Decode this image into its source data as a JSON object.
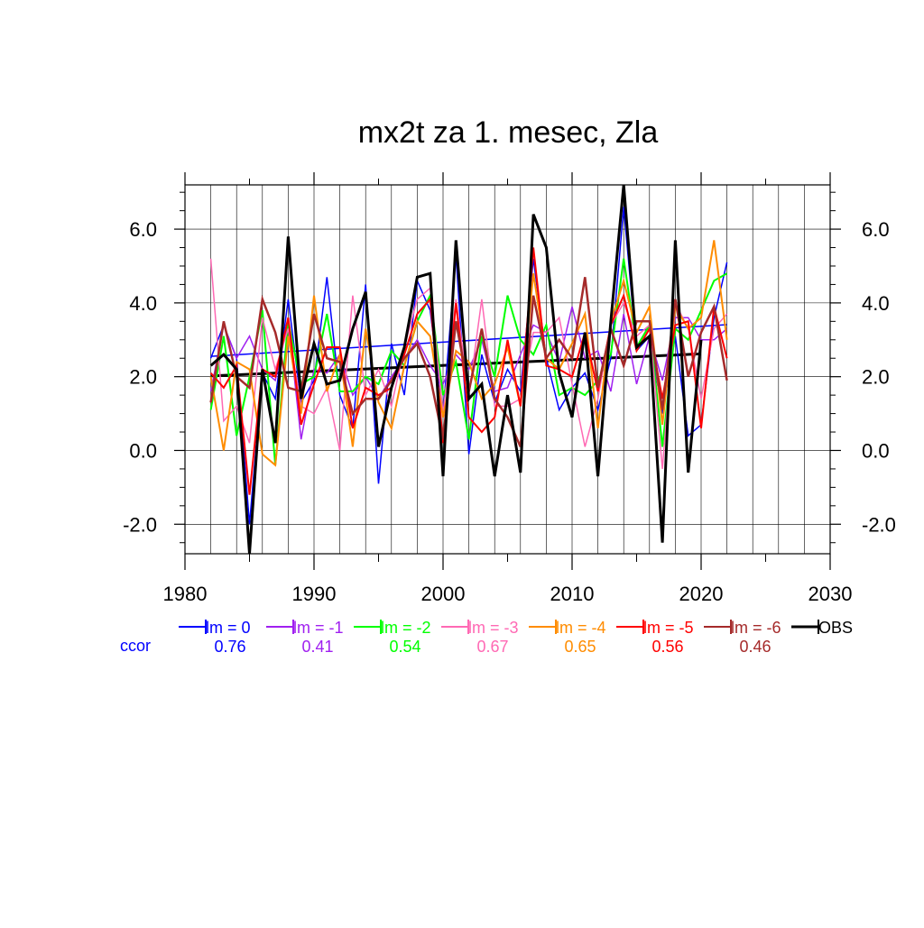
{
  "chart_data": {
    "type": "line",
    "title": "mx2t za 1. mesec, Zla",
    "xlabel": "",
    "ylabel": "",
    "xlim": [
      1980,
      2030
    ],
    "ylim": [
      -2.8,
      7.2
    ],
    "x_ticks": [
      1980,
      1990,
      2000,
      2010,
      2020,
      2030
    ],
    "x_tick_labels": [
      "1980",
      "1990",
      "2000",
      "2010",
      "2020",
      "2030"
    ],
    "y_ticks": [
      -2.0,
      0.0,
      2.0,
      4.0,
      6.0
    ],
    "y_tick_labels": [
      "-2.0",
      "0.0",
      "2.0",
      "4.0",
      "6.0"
    ],
    "grid": true,
    "legend_position": "below",
    "ccor_label": "ccor",
    "ccor_color": "#0000ff",
    "series": [
      {
        "name": "lm = 0",
        "ccor": "0.76",
        "color": "#0000ff",
        "width": 1.5,
        "x": [
          1982,
          1983,
          1984,
          1985,
          1986,
          1987,
          1988,
          1989,
          1990,
          1991,
          1992,
          1993,
          1994,
          1995,
          1996,
          1997,
          1998,
          1999,
          2000,
          2001,
          2002,
          2003,
          2004,
          2005,
          2006,
          2007,
          2008,
          2009,
          2010,
          2011,
          2012,
          2013,
          2014,
          2015,
          2016,
          2017,
          2018,
          2019,
          2020,
          2021,
          2022
        ],
        "y": [
          2.5,
          3.4,
          2.5,
          -2.0,
          2.1,
          1.4,
          4.1,
          1.3,
          1.9,
          4.7,
          1.5,
          0.6,
          4.5,
          -0.9,
          2.9,
          1.5,
          4.6,
          3.8,
          1.0,
          5.3,
          -0.1,
          2.6,
          1.3,
          2.2,
          1.6,
          5.2,
          2.5,
          1.1,
          1.7,
          2.1,
          1.1,
          2.5,
          6.6,
          2.7,
          3.1,
          1.0,
          3.1,
          0.4,
          0.7,
          3.6,
          5.1
        ],
        "trend": [
          [
            1982,
            2.55
          ],
          [
            2022,
            3.41
          ]
        ]
      },
      {
        "name": "lm = -1",
        "ccor": "0.41",
        "color": "#a020f0",
        "width": 1.5,
        "x": [
          1982,
          1983,
          1984,
          1985,
          1986,
          1987,
          1988,
          1989,
          1990,
          1991,
          1992,
          1993,
          1994,
          1995,
          1996,
          1997,
          1998,
          1999,
          2000,
          2001,
          2002,
          2003,
          2004,
          2005,
          2006,
          2007,
          2008,
          2009,
          2010,
          2011,
          2012,
          2013,
          2014,
          2015,
          2016,
          2017,
          2018,
          2019,
          2020,
          2021,
          2022
        ],
        "y": [
          1.6,
          3.4,
          2.5,
          3.1,
          2.2,
          1.9,
          3.5,
          0.3,
          2.2,
          2.1,
          2.6,
          1.5,
          2.0,
          1.4,
          2.0,
          2.5,
          3.0,
          2.3,
          1.8,
          2.6,
          2.2,
          3.0,
          1.6,
          1.7,
          2.6,
          3.4,
          3.2,
          2.4,
          3.9,
          2.5,
          2.7,
          1.6,
          3.7,
          1.8,
          3.1,
          1.9,
          3.6,
          3.6,
          3.0,
          3.0,
          3.3
        ]
      },
      {
        "name": "lm = -2",
        "ccor": "0.54",
        "color": "#00ff00",
        "width": 2,
        "x": [
          1982,
          1983,
          1984,
          1985,
          1986,
          1987,
          1988,
          1989,
          1990,
          1991,
          1992,
          1993,
          1994,
          1995,
          1996,
          1997,
          1998,
          1999,
          2000,
          2001,
          2002,
          2003,
          2004,
          2005,
          2006,
          2007,
          2008,
          2009,
          2010,
          2011,
          2012,
          2013,
          2014,
          2015,
          2016,
          2017,
          2018,
          2019,
          2020,
          2021,
          2022
        ],
        "y": [
          1.1,
          3.1,
          0.4,
          2.0,
          3.8,
          -0.4,
          3.5,
          1.8,
          2.0,
          3.7,
          1.6,
          1.6,
          2.0,
          1.8,
          2.7,
          2.3,
          3.5,
          4.2,
          1.5,
          2.4,
          0.3,
          3.1,
          2.0,
          4.2,
          3.0,
          2.6,
          3.4,
          1.5,
          1.7,
          1.5,
          1.9,
          2.6,
          5.2,
          2.8,
          3.4,
          0.1,
          3.3,
          3.0,
          3.8,
          4.6,
          4.8
        ]
      },
      {
        "name": "lm = -3",
        "ccor": "0.67",
        "color": "#ff69b4",
        "width": 1.5,
        "x": [
          1982,
          1983,
          1984,
          1985,
          1986,
          1987,
          1988,
          1989,
          1990,
          1991,
          1992,
          1993,
          1994,
          1995,
          1996,
          1997,
          1998,
          1999,
          2000,
          2001,
          2002,
          2003,
          2004,
          2005,
          2006,
          2007,
          2008,
          2009,
          2010,
          2011,
          2012,
          2013,
          2014,
          2015,
          2016,
          2017,
          2018,
          2019,
          2020,
          2021,
          2022
        ],
        "y": [
          5.2,
          0.8,
          1.2,
          0.2,
          3.6,
          2.2,
          3.3,
          1.2,
          1.0,
          1.7,
          0.0,
          4.2,
          1.5,
          2.2,
          1.2,
          2.8,
          4.1,
          4.4,
          1.0,
          4.1,
          1.5,
          4.1,
          1.2,
          1.2,
          1.4,
          3.2,
          3.2,
          3.6,
          1.8,
          0.1,
          1.4,
          3.4,
          4.0,
          3.1,
          3.4,
          -0.5,
          4.0,
          3.3,
          1.4,
          3.3,
          3.7
        ]
      },
      {
        "name": "lm = -4",
        "ccor": "0.65",
        "color": "#ff8c00",
        "width": 2,
        "x": [
          1982,
          1983,
          1984,
          1985,
          1986,
          1987,
          1988,
          1989,
          1990,
          1991,
          1992,
          1993,
          1994,
          1995,
          1996,
          1997,
          1998,
          1999,
          2000,
          2001,
          2002,
          2003,
          2004,
          2005,
          2006,
          2007,
          2008,
          2009,
          2010,
          2011,
          2012,
          2013,
          2014,
          2015,
          2016,
          2017,
          2018,
          2019,
          2020,
          2021,
          2022
        ],
        "y": [
          2.0,
          0.0,
          2.4,
          2.2,
          -0.1,
          -0.4,
          3.1,
          1.0,
          4.2,
          1.6,
          2.6,
          0.1,
          3.3,
          1.3,
          0.6,
          2.3,
          3.5,
          3.1,
          0.9,
          2.7,
          2.4,
          1.4,
          1.8,
          2.8,
          1.2,
          4.8,
          2.5,
          2.2,
          2.9,
          3.7,
          0.6,
          3.5,
          4.6,
          3.2,
          3.9,
          0.7,
          3.9,
          3.3,
          3.6,
          5.7,
          3.0
        ]
      },
      {
        "name": "lm = -5",
        "ccor": "0.56",
        "color": "#ff0000",
        "width": 2,
        "x": [
          1982,
          1983,
          1984,
          1985,
          1986,
          1987,
          1988,
          1989,
          1990,
          1991,
          1992,
          1993,
          1994,
          1995,
          1996,
          1997,
          1998,
          1999,
          2000,
          2001,
          2002,
          2003,
          2004,
          2005,
          2006,
          2007,
          2008,
          2009,
          2010,
          2011,
          2012,
          2013,
          2014,
          2015,
          2016,
          2017,
          2018,
          2019,
          2020,
          2021,
          2022
        ],
        "y": [
          2.1,
          1.7,
          2.3,
          -1.2,
          2.2,
          2.0,
          3.6,
          0.7,
          1.8,
          2.8,
          2.8,
          0.6,
          1.7,
          1.5,
          1.7,
          2.6,
          3.7,
          4.1,
          0.2,
          4.0,
          0.9,
          0.5,
          0.9,
          3.0,
          1.2,
          5.5,
          2.3,
          2.2,
          2.0,
          3.2,
          1.6,
          3.4,
          4.2,
          2.7,
          3.3,
          1.4,
          3.4,
          3.5,
          0.6,
          3.9,
          2.5
        ]
      },
      {
        "name": "lm = -6",
        "ccor": "0.46",
        "color": "#a52a2a",
        "width": 2.5,
        "x": [
          1982,
          1983,
          1984,
          1985,
          1986,
          1987,
          1988,
          1989,
          1990,
          1991,
          1992,
          1993,
          1994,
          1995,
          1996,
          1997,
          1998,
          1999,
          2000,
          2001,
          2002,
          2003,
          2004,
          2005,
          2006,
          2007,
          2008,
          2009,
          2010,
          2011,
          2012,
          2013,
          2014,
          2015,
          2016,
          2017,
          2018,
          2019,
          2020,
          2021,
          2022
        ],
        "y": [
          1.3,
          3.5,
          2.0,
          1.7,
          4.1,
          3.2,
          1.7,
          1.6,
          3.7,
          2.5,
          2.4,
          1.0,
          1.4,
          1.4,
          1.9,
          2.5,
          2.9,
          2.0,
          0.3,
          3.5,
          1.6,
          3.3,
          1.4,
          0.9,
          0.1,
          4.2,
          2.5,
          3.0,
          2.5,
          4.7,
          1.7,
          3.3,
          2.3,
          3.5,
          3.5,
          1.1,
          4.1,
          2.0,
          3.2,
          3.9,
          1.9
        ]
      },
      {
        "name": "OBS",
        "ccor": "",
        "color": "#000000",
        "width": 3,
        "x": [
          1982,
          1983,
          1984,
          1985,
          1986,
          1987,
          1988,
          1989,
          1990,
          1991,
          1992,
          1993,
          1994,
          1995,
          1996,
          1997,
          1998,
          1999,
          2000,
          2001,
          2002,
          2003,
          2004,
          2005,
          2006,
          2007,
          2008,
          2009,
          2010,
          2011,
          2012,
          2013,
          2014,
          2015,
          2016,
          2017,
          2018,
          2019,
          2020
        ],
        "y": [
          2.3,
          2.6,
          2.2,
          -2.8,
          2.2,
          0.2,
          5.8,
          1.4,
          2.9,
          1.8,
          1.9,
          3.3,
          4.3,
          0.1,
          1.7,
          2.8,
          4.7,
          4.8,
          -0.7,
          5.7,
          1.4,
          1.8,
          -0.7,
          1.5,
          -0.6,
          6.4,
          5.5,
          2.1,
          0.9,
          3.2,
          -0.7,
          3.5,
          7.2,
          2.8,
          3.1,
          -2.5,
          5.7,
          -0.6,
          3.0
        ],
        "trend": [
          [
            1982,
            2.02
          ],
          [
            2020,
            2.62
          ]
        ]
      }
    ]
  }
}
